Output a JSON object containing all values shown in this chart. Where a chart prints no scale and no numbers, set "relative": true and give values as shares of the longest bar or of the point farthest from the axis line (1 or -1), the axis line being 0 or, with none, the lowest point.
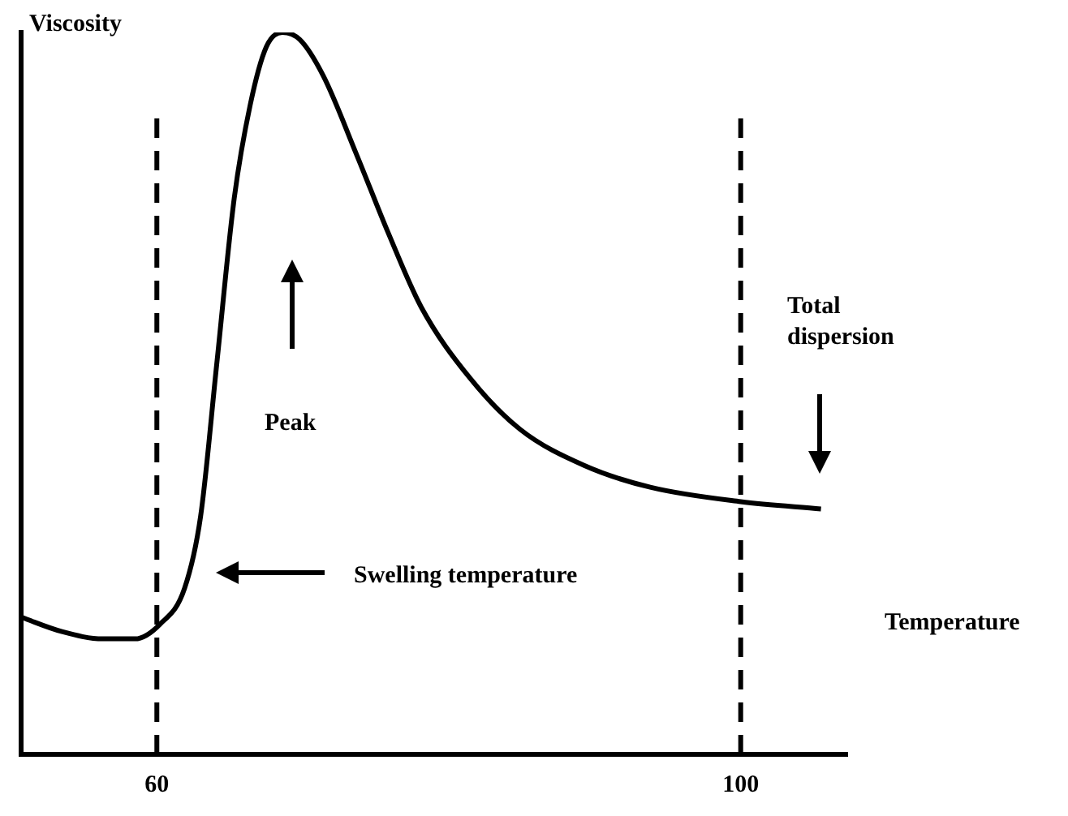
{
  "chart_data": {
    "type": "line",
    "relative": true,
    "xlabel": "Temperature",
    "ylabel": "Viscosity",
    "x": [
      50.7,
      53.5,
      56.3,
      58.5,
      60.2,
      61.9,
      63.0,
      64.1,
      65.3,
      66.4,
      67.5,
      68.6,
      69.8,
      71.4,
      73.7,
      75.9,
      78.1,
      81.5,
      84.9,
      89.3,
      93.8,
      100,
      105.5
    ],
    "series": [
      {
        "color": "#000000",
        "values": [
          0.19,
          0.17,
          0.16,
          0.16,
          0.18,
          0.23,
          0.33,
          0.54,
          0.77,
          0.9,
          0.98,
          1,
          0.99,
          0.94,
          0.83,
          0.72,
          0.62,
          0.52,
          0.45,
          0.4,
          0.37,
          0.35,
          0.34
        ]
      }
    ],
    "xlim": [
      50.7,
      107.3
    ],
    "xticks": [
      60,
      100
    ],
    "marker": "none",
    "line_style": "solid",
    "grid": false,
    "legend": false,
    "ref_lines": [
      {
        "axis": "x",
        "value": 60,
        "color": "#000000",
        "line_style": "dashed"
      },
      {
        "axis": "x",
        "value": 100,
        "color": "#000000",
        "line_style": "dashed"
      }
    ],
    "annotations": [
      "Peak",
      "Swelling temperature",
      "Total dispersion"
    ]
  }
}
